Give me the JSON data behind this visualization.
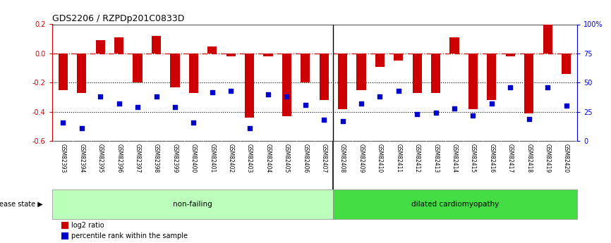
{
  "title": "GDS2206 / RZPDp201C0833D",
  "categories": [
    "GSM82393",
    "GSM82394",
    "GSM82395",
    "GSM82396",
    "GSM82397",
    "GSM82398",
    "GSM82399",
    "GSM82400",
    "GSM82401",
    "GSM82402",
    "GSM82403",
    "GSM82404",
    "GSM82405",
    "GSM82406",
    "GSM82407",
    "GSM82408",
    "GSM82409",
    "GSM82410",
    "GSM82411",
    "GSM82412",
    "GSM82413",
    "GSM82414",
    "GSM82415",
    "GSM82416",
    "GSM82417",
    "GSM82418",
    "GSM82419",
    "GSM82420"
  ],
  "log2_ratio": [
    -0.25,
    -0.27,
    0.09,
    0.11,
    -0.2,
    0.12,
    -0.23,
    -0.27,
    0.05,
    -0.02,
    -0.44,
    -0.02,
    -0.43,
    -0.2,
    -0.32,
    -0.38,
    -0.25,
    -0.09,
    -0.05,
    -0.27,
    -0.27,
    0.11,
    -0.38,
    -0.32,
    -0.02,
    -0.41,
    0.2,
    -0.14
  ],
  "percentile": [
    16,
    11,
    38,
    32,
    29,
    38,
    29,
    16,
    42,
    43,
    11,
    40,
    38,
    31,
    18,
    17,
    32,
    38,
    43,
    23,
    24,
    28,
    22,
    32,
    46,
    19,
    46,
    30
  ],
  "non_failing_count": 15,
  "bar_color": "#cc0000",
  "dot_color": "#0000cc",
  "nonfailing_color": "#bbffbb",
  "dilated_color": "#44dd44",
  "y_min": -0.6,
  "y_max": 0.2,
  "yticks_left": [
    0.2,
    0.0,
    -0.2,
    -0.4,
    -0.6
  ],
  "yticks_right_vals": [
    100,
    75,
    50,
    25,
    0
  ],
  "yticks_right_labels": [
    "100%",
    "75",
    "50",
    "25",
    "0"
  ],
  "legend_bar": "log2 ratio",
  "legend_dot": "percentile rank within the sample",
  "disease_state_label": "disease state",
  "nonfailing_label": "non-failing",
  "dilated_label": "dilated cardiomyopathy",
  "xlabels_bg": "#cccccc",
  "bar_width": 0.5
}
